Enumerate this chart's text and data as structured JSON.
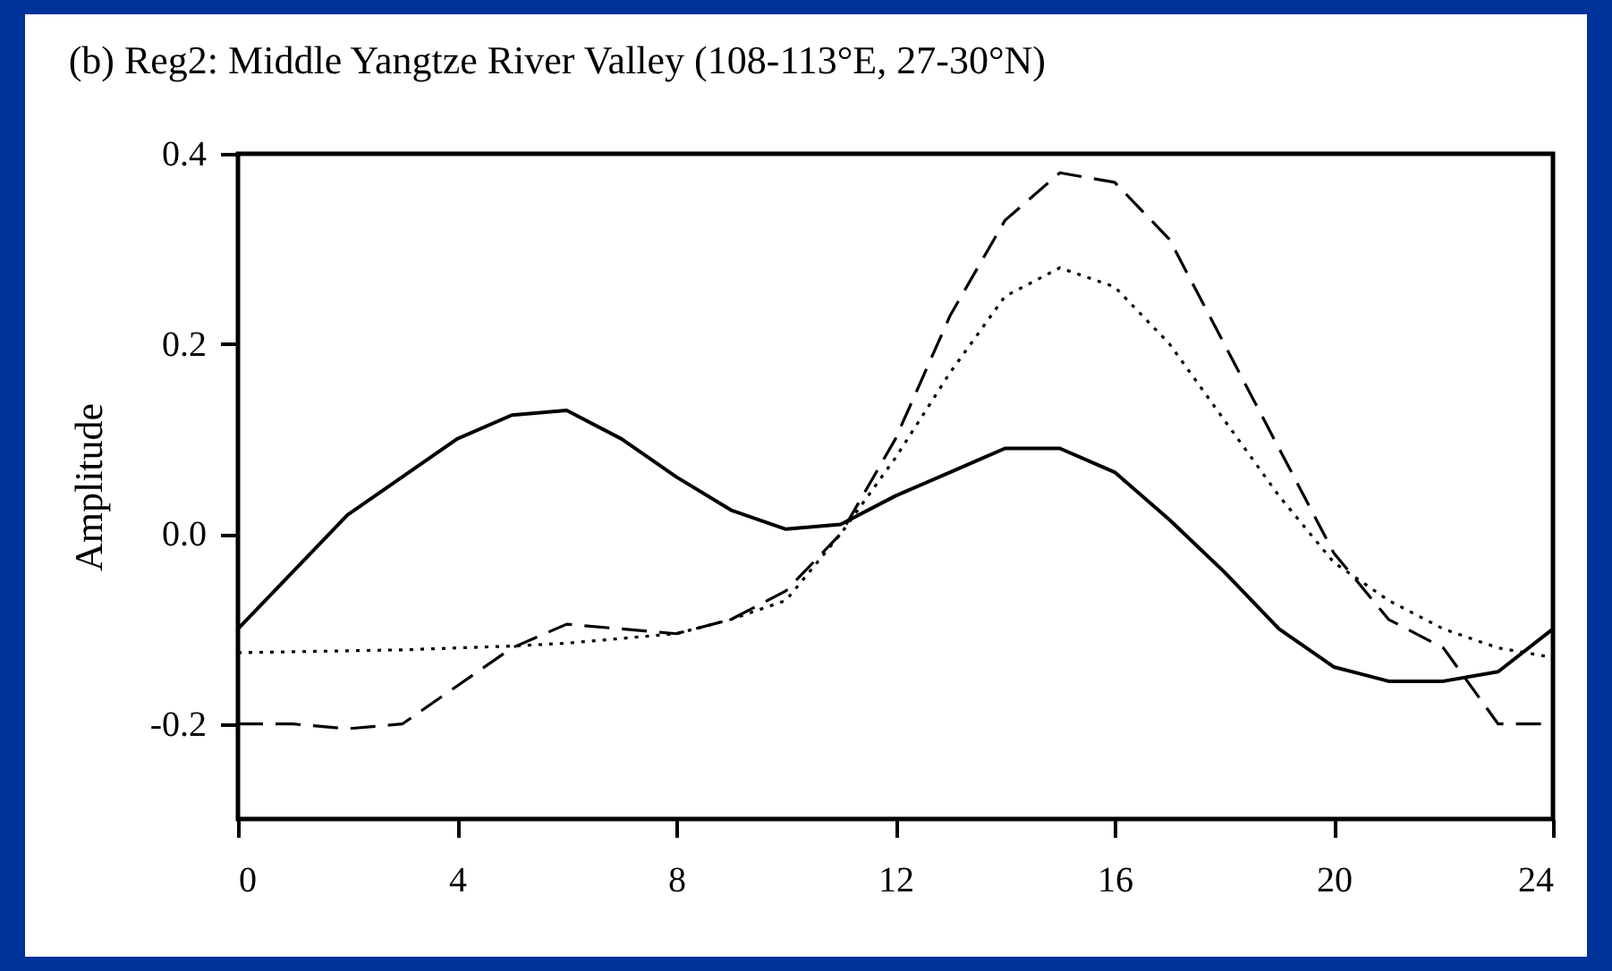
{
  "chart_data": {
    "type": "line",
    "title": "(b) Reg2: Middle Yangtze River Valley (108-113°E, 27-30°N)",
    "ylabel": "Amplitude",
    "xlim": [
      0,
      24
    ],
    "xticks": [
      0,
      4,
      8,
      12,
      16,
      20,
      24
    ],
    "ylim": [
      -0.3,
      0.4
    ],
    "yticks": [
      -0.2,
      {
        "value": 0,
        "label": "0.0"
      },
      0.2,
      0.4
    ],
    "grid": false,
    "marker": "none",
    "series": [
      {
        "color": "#000000",
        "line_style": "solid",
        "x": [
          0,
          1,
          2,
          3,
          4,
          5,
          6,
          7,
          8,
          9,
          10,
          11,
          12,
          13,
          14,
          15,
          16,
          17,
          18,
          19,
          20,
          21,
          22,
          23,
          24
        ],
        "values": [
          -0.1,
          -0.04,
          0.02,
          0.06,
          0.1,
          0.125,
          0.13,
          0.1,
          0.06,
          0.025,
          0.005,
          0.01,
          0.04,
          0.065,
          0.09,
          0.09,
          0.065,
          0.015,
          -0.04,
          -0.1,
          -0.14,
          -0.155,
          -0.155,
          -0.145,
          -0.1
        ]
      },
      {
        "color": "#000000",
        "line_style": "dashed",
        "x": [
          0,
          1,
          2,
          3,
          4,
          5,
          6,
          7,
          8,
          9,
          10,
          11,
          12,
          13,
          14,
          15,
          16,
          17,
          18,
          19,
          20,
          21,
          22,
          23,
          24
        ],
        "values": [
          -0.2,
          -0.2,
          -0.205,
          -0.2,
          -0.16,
          -0.12,
          -0.095,
          -0.1,
          -0.105,
          -0.09,
          -0.06,
          0.0,
          0.1,
          0.23,
          0.33,
          0.38,
          0.37,
          0.31,
          0.2,
          0.09,
          -0.02,
          -0.09,
          -0.12,
          -0.2,
          -0.2
        ]
      },
      {
        "color": "#000000",
        "line_style": "dotted",
        "x": [
          0,
          1,
          2,
          3,
          4,
          5,
          6,
          7,
          8,
          9,
          10,
          11,
          12,
          13,
          14,
          15,
          16,
          17,
          18,
          19,
          20,
          21,
          22,
          23,
          24
        ],
        "values": [
          -0.125,
          -0.124,
          -0.123,
          -0.122,
          -0.12,
          -0.118,
          -0.115,
          -0.11,
          -0.105,
          -0.09,
          -0.07,
          0.0,
          0.08,
          0.17,
          0.25,
          0.28,
          0.26,
          0.2,
          0.12,
          0.04,
          -0.03,
          -0.07,
          -0.1,
          -0.12,
          -0.13
        ]
      }
    ]
  }
}
